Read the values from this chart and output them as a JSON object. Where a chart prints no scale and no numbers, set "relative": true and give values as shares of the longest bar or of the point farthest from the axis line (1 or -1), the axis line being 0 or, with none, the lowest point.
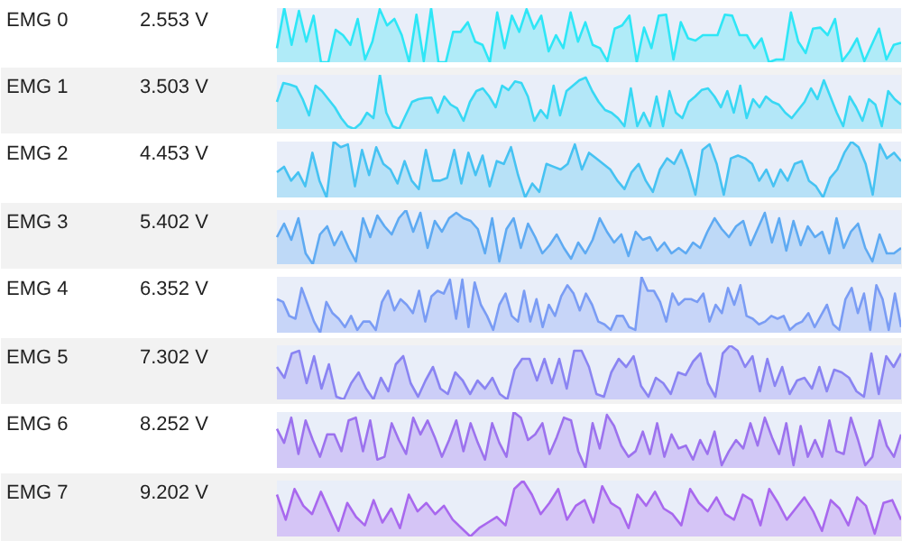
{
  "chart_data": [
    {
      "type": "area",
      "annotations": [
        "EMG 0",
        "2.553 V"
      ],
      "relative": true,
      "color": "#2ee6f6",
      "categories": [
        null,
        null,
        null,
        null,
        null,
        null,
        null,
        null,
        null,
        null,
        null,
        null,
        null,
        null,
        null,
        null,
        null,
        null,
        null,
        null,
        null,
        null,
        null,
        null,
        null,
        null,
        null,
        null,
        null,
        null,
        null,
        null,
        null,
        null,
        null,
        null,
        null,
        null,
        null,
        null,
        null,
        null,
        null,
        null,
        null,
        null,
        null,
        null,
        null,
        null,
        null,
        null,
        null,
        null,
        null,
        null,
        null,
        null,
        null,
        null,
        null,
        null,
        null,
        null,
        null,
        null,
        null,
        null,
        null,
        null,
        null,
        null,
        null,
        null,
        null,
        null,
        null,
        null,
        null,
        null,
        null,
        null,
        null,
        null,
        null,
        null
      ],
      "values": [
        0.26,
        1,
        0.32,
        0.95,
        0.38,
        0.86,
        0,
        0,
        0.6,
        0.5,
        0.32,
        0.8,
        0.05,
        0.38,
        0.98,
        0.68,
        0.8,
        0.5,
        0,
        0.88,
        0.02,
        1,
        0,
        0,
        0.56,
        0.56,
        0.74,
        0.38,
        0.32,
        0,
        0.92,
        0.26,
        0.86,
        0.56,
        0.98,
        0.62,
        0.86,
        0.2,
        0.5,
        0.26,
        0.92,
        0.38,
        0.74,
        0.32,
        0.26,
        0.02,
        0.62,
        0.68,
        0.86,
        0,
        0.64,
        0.26,
        0.86,
        0.88,
        0.05,
        0.74,
        0.44,
        0.4,
        0.5,
        0.5,
        0.5,
        0.88,
        0.86,
        0.5,
        0.5,
        0.26,
        0.44,
        0,
        0.05,
        0.05,
        0.92,
        0.38,
        0.17,
        0.62,
        0.64,
        0.5,
        0.8,
        0.02,
        0.2,
        0.44,
        0.02,
        0.32,
        0.62,
        0.05,
        0.32,
        0.36
      ]
    },
    {
      "type": "area",
      "annotations": [
        "EMG 1",
        "3.503 V"
      ],
      "relative": true,
      "color": "#38d8f4",
      "categories": [
        null,
        null,
        null,
        null,
        null,
        null,
        null,
        null,
        null,
        null,
        null,
        null,
        null,
        null,
        null,
        null,
        null,
        null,
        null,
        null,
        null,
        null,
        null,
        null,
        null,
        null,
        null,
        null,
        null,
        null,
        null,
        null,
        null,
        null,
        null,
        null,
        null,
        null,
        null,
        null,
        null,
        null,
        null,
        null,
        null,
        null,
        null,
        null,
        null,
        null,
        null,
        null,
        null,
        null,
        null,
        null,
        null,
        null,
        null,
        null,
        null,
        null,
        null,
        null,
        null,
        null,
        null,
        null,
        null,
        null,
        null,
        null,
        null,
        null,
        null,
        null,
        null,
        null,
        null,
        null,
        null,
        null,
        null,
        null,
        null,
        null,
        null,
        null,
        null,
        null,
        null,
        null,
        null,
        null,
        null,
        null,
        null,
        null
      ],
      "values": [
        0.5,
        0.85,
        0.82,
        0.78,
        0.55,
        0.25,
        0.8,
        0.7,
        0.55,
        0.4,
        0.2,
        0.05,
        0,
        0.1,
        0.3,
        0.2,
        1,
        0.3,
        0.05,
        0,
        0.25,
        0.5,
        0.55,
        0.57,
        0.58,
        0.3,
        0.6,
        0.45,
        0.38,
        0.15,
        0.5,
        0.7,
        0.75,
        0.6,
        0.4,
        0.8,
        0.72,
        0.88,
        0.85,
        0.6,
        0.15,
        0.35,
        0.2,
        0.8,
        0.25,
        0.7,
        0.8,
        0.9,
        0.95,
        0.7,
        0.5,
        0.35,
        0.3,
        0.2,
        0.05,
        0.75,
        0.05,
        0.3,
        0.05,
        0.6,
        0.05,
        0.7,
        0.3,
        0.2,
        0.5,
        0.6,
        0.72,
        0.75,
        0.6,
        0.4,
        0.7,
        0.3,
        0.8,
        0.2,
        0.55,
        0.4,
        0.6,
        0.5,
        0.45,
        0.3,
        0.2,
        0.35,
        0.5,
        0.75,
        0.55,
        0.9,
        0.6,
        0.3,
        0.05,
        0.6,
        0.4,
        0.15,
        0.55,
        0.45,
        0.05,
        0.7,
        0.55,
        0.45
      ]
    },
    {
      "type": "area",
      "annotations": [
        "EMG 2",
        "4.453 V"
      ],
      "relative": true,
      "color": "#46c2f2",
      "categories": [
        null,
        null,
        null,
        null,
        null,
        null,
        null,
        null,
        null,
        null,
        null,
        null,
        null,
        null,
        null,
        null,
        null,
        null,
        null,
        null,
        null,
        null,
        null,
        null,
        null,
        null,
        null,
        null,
        null,
        null,
        null,
        null,
        null,
        null,
        null,
        null,
        null,
        null,
        null,
        null,
        null,
        null,
        null,
        null,
        null,
        null,
        null,
        null,
        null,
        null,
        null,
        null,
        null,
        null,
        null,
        null,
        null,
        null,
        null,
        null,
        null,
        null,
        null,
        null,
        null,
        null,
        null,
        null,
        null,
        null,
        null,
        null,
        null,
        null,
        null,
        null,
        null,
        null,
        null,
        null,
        null,
        null,
        null,
        null,
        null,
        null,
        null,
        null,
        null
      ],
      "values": [
        0.45,
        0.55,
        0.3,
        0.45,
        0.2,
        0.8,
        0.3,
        0,
        1,
        0.9,
        0.95,
        0.2,
        0.85,
        0.4,
        0.9,
        0.6,
        0.5,
        0.25,
        0.65,
        0.3,
        0.15,
        0.85,
        0.3,
        0.3,
        0.35,
        0.85,
        0.25,
        0.8,
        0.4,
        0.75,
        0.2,
        0.65,
        0.6,
        0.9,
        0.4,
        0,
        0.25,
        0.1,
        0.6,
        0.55,
        0.5,
        0.6,
        0.95,
        0.5,
        0.8,
        0.7,
        0.6,
        0.5,
        0.3,
        0.15,
        0.45,
        0.6,
        0.3,
        0.1,
        0.5,
        0.7,
        0.6,
        0.85,
        0.5,
        0.05,
        0.85,
        0.95,
        0.6,
        0.05,
        0.7,
        0.75,
        0.7,
        0.6,
        0.3,
        0.5,
        0.2,
        0.5,
        0.3,
        0.6,
        0.65,
        0.3,
        0.2,
        0,
        0.35,
        0.5,
        0.8,
        1,
        0.9,
        0.6,
        0.05,
        0.95,
        0.7,
        0.8,
        0.65
      ]
    },
    {
      "type": "area",
      "annotations": [
        "EMG 3",
        "5.402 V"
      ],
      "relative": true,
      "color": "#5eaaf2",
      "categories": [
        null,
        null,
        null,
        null,
        null,
        null,
        null,
        null,
        null,
        null,
        null,
        null,
        null,
        null,
        null,
        null,
        null,
        null,
        null,
        null,
        null,
        null,
        null,
        null,
        null,
        null,
        null,
        null,
        null,
        null,
        null,
        null,
        null,
        null,
        null,
        null,
        null,
        null,
        null,
        null,
        null,
        null,
        null,
        null,
        null,
        null,
        null,
        null,
        null,
        null,
        null,
        null,
        null,
        null,
        null,
        null,
        null,
        null,
        null,
        null,
        null,
        null,
        null,
        null,
        null,
        null,
        null,
        null,
        null,
        null,
        null,
        null,
        null,
        null,
        null,
        null,
        null,
        null,
        null,
        null,
        null,
        null,
        null,
        null,
        null,
        null,
        null,
        null
      ],
      "values": [
        0.5,
        0.75,
        0.45,
        0.85,
        0.2,
        0,
        0.55,
        0.7,
        0.35,
        0.6,
        0.3,
        0.05,
        0.85,
        0.5,
        0.9,
        0.7,
        0.55,
        0.85,
        1,
        0.6,
        0.95,
        0.3,
        0.8,
        0.6,
        0.85,
        0.95,
        0.85,
        0.8,
        0.65,
        0.2,
        0.85,
        0.05,
        0.65,
        0.85,
        0.3,
        0.75,
        0.5,
        0.2,
        0.35,
        0.55,
        0.3,
        0.1,
        0.4,
        0.2,
        0.45,
        0.85,
        0.6,
        0.4,
        0.55,
        0.15,
        0.6,
        0.45,
        0.5,
        0.25,
        0.4,
        0.2,
        0.3,
        0.2,
        0.4,
        0.3,
        0.6,
        0.85,
        0.65,
        0.5,
        0.7,
        0.8,
        0.35,
        0.65,
        0.95,
        0.4,
        0.85,
        0.25,
        0.8,
        0.35,
        0.7,
        0.5,
        0.6,
        0.2,
        0.85,
        0.3,
        0.6,
        0.75,
        0.3,
        0.05,
        0.55,
        0.2,
        0.2,
        0.3
      ]
    },
    {
      "type": "area",
      "annotations": [
        "EMG 4",
        "6.352 V"
      ],
      "relative": true,
      "color": "#7a9cf4",
      "categories": [
        null,
        null,
        null,
        null,
        null,
        null,
        null,
        null,
        null,
        null,
        null,
        null,
        null,
        null,
        null,
        null,
        null,
        null,
        null,
        null,
        null,
        null,
        null,
        null,
        null,
        null,
        null,
        null,
        null,
        null,
        null,
        null,
        null,
        null,
        null,
        null,
        null,
        null,
        null,
        null,
        null,
        null,
        null,
        null,
        null,
        null,
        null,
        null,
        null,
        null,
        null,
        null,
        null,
        null,
        null,
        null,
        null,
        null,
        null,
        null,
        null,
        null,
        null,
        null,
        null,
        null,
        null,
        null,
        null,
        null,
        null,
        null,
        null,
        null,
        null,
        null,
        null,
        null,
        null,
        null,
        null,
        null,
        null,
        null,
        null,
        null,
        null,
        null,
        null,
        null,
        null,
        null,
        null,
        null,
        null,
        null,
        null,
        null,
        null,
        null,
        null,
        null
      ],
      "values": [
        0.6,
        0.55,
        0.3,
        0.25,
        0.8,
        0.5,
        0.2,
        0,
        0.55,
        0.35,
        0.25,
        0.1,
        0.3,
        0.05,
        0.2,
        0.2,
        0.05,
        0.55,
        0.75,
        0.4,
        0.6,
        0.5,
        0.35,
        0.75,
        0.2,
        0.65,
        0.75,
        0.7,
        0.95,
        0.25,
        0.95,
        0.1,
        0.9,
        0.5,
        0.3,
        0.05,
        0.5,
        0.7,
        0.3,
        0.2,
        0.75,
        0.2,
        0.6,
        0.1,
        0.5,
        0.3,
        0.65,
        0.85,
        0.7,
        0.4,
        0.7,
        0.5,
        0.2,
        0.15,
        0.05,
        0.3,
        0.3,
        0.1,
        0.05,
        1,
        0.75,
        0.75,
        0.55,
        0.2,
        0.7,
        0.5,
        0.6,
        0.6,
        0.55,
        0.7,
        0.2,
        0.5,
        0.35,
        0.8,
        0.5,
        0.85,
        0.3,
        0.25,
        0.15,
        0.2,
        0.3,
        0.25,
        0.3,
        0.05,
        0.15,
        0.2,
        0.35,
        0.1,
        0.3,
        0.5,
        0.15,
        0.05,
        0.6,
        0.8,
        0.35,
        0.7,
        0.05,
        0.85,
        0.6,
        0.05,
        0.7,
        0.1
      ]
    },
    {
      "type": "area",
      "annotations": [
        "EMG 5",
        "7.302 V"
      ],
      "relative": true,
      "color": "#8a84f2",
      "categories": [
        null,
        null,
        null,
        null,
        null,
        null,
        null,
        null,
        null,
        null,
        null,
        null,
        null,
        null,
        null,
        null,
        null,
        null,
        null,
        null,
        null,
        null,
        null,
        null,
        null,
        null,
        null,
        null,
        null,
        null,
        null,
        null,
        null,
        null,
        null,
        null,
        null,
        null,
        null,
        null,
        null,
        null,
        null,
        null,
        null,
        null,
        null,
        null,
        null,
        null,
        null,
        null,
        null,
        null,
        null,
        null,
        null,
        null,
        null,
        null,
        null,
        null,
        null,
        null,
        null,
        null,
        null,
        null,
        null,
        null,
        null,
        null,
        null,
        null,
        null,
        null,
        null,
        null,
        null,
        null,
        null,
        null,
        null,
        null,
        null
      ],
      "values": [
        0.6,
        0.4,
        0.85,
        0.9,
        0.3,
        0.8,
        0.2,
        0.65,
        0.05,
        0,
        0.3,
        0.5,
        0.2,
        0,
        0.4,
        0.15,
        0.65,
        0.8,
        0.3,
        0.05,
        0.35,
        0.6,
        0.2,
        0.1,
        0.5,
        0.35,
        0.1,
        0.35,
        0.2,
        0.4,
        0.1,
        0,
        0.55,
        0.75,
        0.75,
        0.35,
        0.75,
        0.3,
        0.75,
        0.2,
        0.9,
        0.9,
        0.6,
        0.1,
        0.05,
        0.5,
        0.75,
        0.6,
        0.8,
        0.25,
        0.05,
        0.4,
        0.3,
        0.1,
        0.5,
        0.45,
        0.7,
        0.85,
        0.3,
        0.05,
        0.85,
        1,
        0.9,
        0.6,
        0.8,
        0.15,
        0.75,
        0.25,
        0.6,
        0.1,
        0.35,
        0.4,
        0.2,
        0.6,
        0.15,
        0.55,
        0.5,
        0.4,
        0.15,
        0.05,
        0.85,
        0.1,
        0.8,
        0.6,
        0.85
      ]
    },
    {
      "type": "area",
      "annotations": [
        "EMG 6",
        "8.252 V"
      ],
      "relative": true,
      "color": "#9c72ee",
      "categories": [
        null,
        null,
        null,
        null,
        null,
        null,
        null,
        null,
        null,
        null,
        null,
        null,
        null,
        null,
        null,
        null,
        null,
        null,
        null,
        null,
        null,
        null,
        null,
        null,
        null,
        null,
        null,
        null,
        null,
        null,
        null,
        null,
        null,
        null,
        null,
        null,
        null,
        null,
        null,
        null,
        null,
        null,
        null,
        null,
        null,
        null,
        null,
        null,
        null,
        null,
        null,
        null,
        null,
        null,
        null,
        null,
        null,
        null,
        null,
        null,
        null,
        null,
        null,
        null,
        null,
        null,
        null,
        null,
        null,
        null,
        null,
        null,
        null,
        null,
        null,
        null,
        null,
        null,
        null,
        null,
        null,
        null,
        null,
        null,
        null,
        null,
        null,
        null
      ],
      "values": [
        0.7,
        0.45,
        0.9,
        0.25,
        0.85,
        0.5,
        0.2,
        0.6,
        0.6,
        0.3,
        0.85,
        0.9,
        0.3,
        0.85,
        0.15,
        0.2,
        0.8,
        0.5,
        0.25,
        0.9,
        0.6,
        0.85,
        0.55,
        0.2,
        0.5,
        0.85,
        0.3,
        0.8,
        0.45,
        0.15,
        0.8,
        0.45,
        0.2,
        1,
        0.9,
        0.5,
        0.6,
        0.8,
        0.25,
        0.55,
        0.9,
        0.85,
        0.3,
        0,
        0.8,
        0.35,
        0.95,
        0.75,
        0.4,
        0.2,
        0.3,
        0.65,
        0.25,
        0.8,
        0.2,
        0.6,
        0.35,
        0.4,
        0.15,
        0.5,
        0.25,
        0.65,
        0.05,
        0.3,
        0.5,
        0.35,
        0.8,
        0.4,
        0.9,
        0.55,
        0.25,
        0.8,
        0.05,
        0.75,
        0.2,
        0.5,
        0.2,
        0.85,
        0.3,
        0.25,
        0.9,
        0.5,
        0.05,
        0.2,
        0.85,
        0.4,
        0.2,
        0.6
      ]
    },
    {
      "type": "area",
      "annotations": [
        "EMG 7",
        "9.202 V"
      ],
      "relative": true,
      "color": "#a868ee",
      "categories": [
        null,
        null,
        null,
        null,
        null,
        null,
        null,
        null,
        null,
        null,
        null,
        null,
        null,
        null,
        null,
        null,
        null,
        null,
        null,
        null,
        null,
        null,
        null,
        null,
        null,
        null,
        null,
        null,
        null,
        null,
        null,
        null,
        null,
        null,
        null,
        null,
        null,
        null,
        null,
        null,
        null,
        null,
        null,
        null,
        null,
        null,
        null,
        null,
        null,
        null,
        null,
        null,
        null,
        null,
        null,
        null,
        null,
        null,
        null,
        null,
        null,
        null,
        null,
        null,
        null,
        null,
        null,
        null,
        null,
        null,
        null,
        null
      ],
      "values": [
        0.75,
        0.3,
        0.85,
        0.55,
        0.4,
        0.8,
        0.45,
        0.1,
        0.6,
        0.35,
        0.2,
        0.65,
        0.25,
        0.5,
        0.15,
        0.75,
        0.45,
        0.6,
        0.4,
        0.55,
        0.3,
        0.15,
        0,
        0.15,
        0.25,
        0.35,
        0.2,
        0.85,
        1,
        0.75,
        0.4,
        0.6,
        0.85,
        0.3,
        0.55,
        0.65,
        0.25,
        0.9,
        0.6,
        0.5,
        0.15,
        0.75,
        0.55,
        0.8,
        0.5,
        0.4,
        0.2,
        0.85,
        0.6,
        0.45,
        0.7,
        0.4,
        0.3,
        0.75,
        0.65,
        0.2,
        0.85,
        0.6,
        0.3,
        0.5,
        0.7,
        0.45,
        0.1,
        0.65,
        0.5,
        0.2,
        0.7,
        0.55,
        0.05,
        0.6,
        0.65,
        0.3
      ]
    }
  ]
}
